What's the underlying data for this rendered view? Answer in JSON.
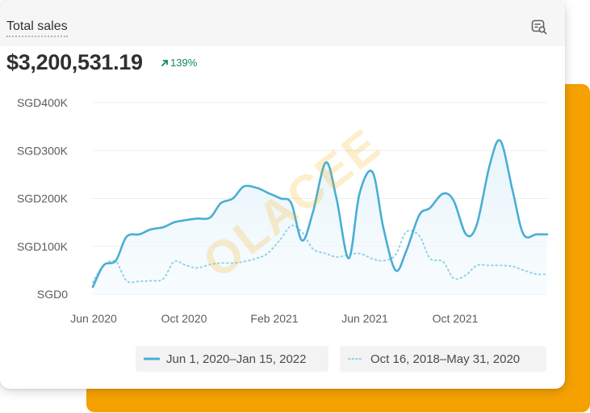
{
  "card": {
    "title": "Total sales",
    "total_value": "$3,200,531.19",
    "change": "139%",
    "change_icon": "arrow-up-right-icon",
    "header_icon": "chart-search-icon"
  },
  "watermark": "OLACEE",
  "colors": {
    "primary": "#4aaed3",
    "comparison": "#8fd3e8",
    "accent": "#f5a100",
    "positive": "#0f8a5f"
  },
  "chart_data": {
    "type": "line",
    "ylim": [
      0,
      400000
    ],
    "y_ticks": [
      0,
      100000,
      200000,
      300000,
      400000
    ],
    "y_tick_labels": [
      "SGD0",
      "SGD100K",
      "SGD200K",
      "SGD300K",
      "SGD400K"
    ],
    "x_tick_labels": [
      "Jun 2020",
      "Oct 2020",
      "Feb 2021",
      "Jun 2021",
      "Oct 2021"
    ],
    "grid": true,
    "legend_position": "bottom",
    "series": [
      {
        "name": "Jun 1, 2020–Jan 15, 2022",
        "style": "solid",
        "x": [
          "2020-06-01",
          "2020-06-15",
          "2020-07-01",
          "2020-07-15",
          "2020-08-01",
          "2020-08-15",
          "2020-09-01",
          "2020-09-15",
          "2020-10-01",
          "2020-10-15",
          "2020-11-01",
          "2020-11-15",
          "2020-12-01",
          "2020-12-15",
          "2021-01-01",
          "2021-01-15",
          "2021-02-01",
          "2021-02-15",
          "2021-03-01",
          "2021-03-15",
          "2021-04-01",
          "2021-04-15",
          "2021-05-01",
          "2021-05-15",
          "2021-06-01",
          "2021-06-15",
          "2021-07-01",
          "2021-07-15",
          "2021-08-01",
          "2021-08-15",
          "2021-09-01",
          "2021-09-15",
          "2021-10-01",
          "2021-10-15",
          "2021-11-01",
          "2021-11-15",
          "2021-12-01",
          "2021-12-15",
          "2022-01-01",
          "2022-01-15"
        ],
        "values": [
          15000,
          60000,
          70000,
          120000,
          125000,
          135000,
          140000,
          150000,
          155000,
          158000,
          160000,
          190000,
          200000,
          225000,
          222000,
          212000,
          200000,
          190000,
          112000,
          170000,
          275000,
          200000,
          75000,
          210000,
          255000,
          140000,
          50000,
          90000,
          165000,
          180000,
          210000,
          195000,
          125000,
          145000,
          270000,
          320000,
          215000,
          125000,
          125000,
          125000
        ]
      },
      {
        "name": "Oct 16, 2018–May 31, 2020",
        "style": "dotted",
        "x": [
          "2020-06-01",
          "2020-06-15",
          "2020-07-01",
          "2020-07-15",
          "2020-08-01",
          "2020-08-15",
          "2020-09-01",
          "2020-09-15",
          "2020-10-01",
          "2020-10-15",
          "2020-11-01",
          "2020-11-15",
          "2020-12-01",
          "2020-12-15",
          "2021-01-01",
          "2021-01-15",
          "2021-02-01",
          "2021-02-15",
          "2021-03-01",
          "2021-03-15",
          "2021-04-01",
          "2021-04-15",
          "2021-05-01",
          "2021-05-15",
          "2021-06-01",
          "2021-06-15",
          "2021-07-01",
          "2021-07-15",
          "2021-08-01",
          "2021-08-15",
          "2021-09-01",
          "2021-09-15",
          "2021-10-01",
          "2021-10-15",
          "2021-11-01",
          "2021-11-15",
          "2021-12-01",
          "2021-12-15",
          "2022-01-01",
          "2022-01-15"
        ],
        "values": [
          25000,
          60000,
          68000,
          28000,
          27000,
          28000,
          32000,
          68000,
          60000,
          55000,
          62000,
          65000,
          65000,
          68000,
          75000,
          85000,
          115000,
          143000,
          130000,
          95000,
          85000,
          78000,
          82000,
          85000,
          74000,
          70000,
          82000,
          130000,
          122000,
          75000,
          68000,
          33000,
          40000,
          60000,
          60000,
          60000,
          58000,
          50000,
          42000,
          42000
        ]
      }
    ]
  }
}
